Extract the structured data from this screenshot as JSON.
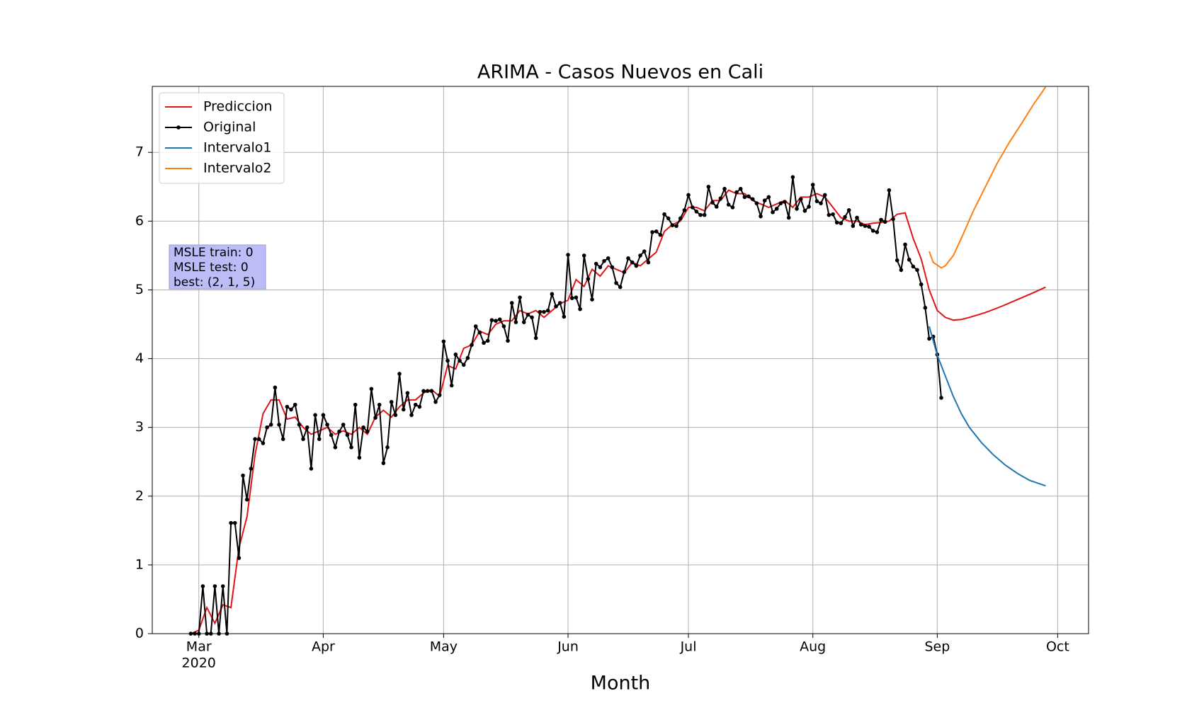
{
  "chart_data": {
    "type": "line",
    "title": "ARIMA - Casos Nuevos en Cali",
    "x_label": "Month",
    "x_year_label": "2020",
    "annotations": [
      "MSLE train: 0",
      "MSLE test: 0",
      "best: (2, 1, 5)"
    ],
    "xlim": [
      -11.6,
      221.7
    ],
    "xticks": [
      {
        "value": 0,
        "label": "Mar"
      },
      {
        "value": 31,
        "label": "Apr"
      },
      {
        "value": 61,
        "label": "May"
      },
      {
        "value": 92,
        "label": "Jun"
      },
      {
        "value": 122,
        "label": "Jul"
      },
      {
        "value": 153,
        "label": "Aug"
      },
      {
        "value": 184,
        "label": "Sep"
      },
      {
        "value": 214,
        "label": "Oct"
      }
    ],
    "ylim": [
      0,
      7.96
    ],
    "yticks": [
      0,
      1,
      2,
      3,
      4,
      5,
      6,
      7
    ],
    "grid": true,
    "legend": "upper left",
    "series": [
      {
        "name": "Prediccion",
        "color": "#e0141a",
        "marker": false,
        "x": [
          -2,
          0,
          2,
          4,
          6,
          8,
          10,
          12,
          14,
          16,
          18,
          20,
          22,
          24,
          26,
          28,
          30,
          32,
          34,
          36,
          38,
          40,
          42,
          44,
          46,
          48,
          50,
          52,
          54,
          56,
          58,
          60,
          62,
          64,
          66,
          68,
          70,
          72,
          74,
          76,
          78,
          80,
          82,
          84,
          86,
          88,
          90,
          92,
          94,
          96,
          98,
          100,
          102,
          104,
          106,
          108,
          110,
          112,
          114,
          116,
          118,
          120,
          122,
          124,
          126,
          128,
          130,
          132,
          134,
          136,
          138,
          140,
          142,
          144,
          146,
          148,
          150,
          152,
          154,
          156,
          158,
          160,
          162,
          164,
          166,
          168,
          170,
          172,
          174,
          176,
          178,
          180,
          182,
          184,
          186,
          188,
          190,
          192,
          196,
          200,
          204,
          208,
          211
        ],
        "values": [
          0,
          0.05,
          0.38,
          0.15,
          0.42,
          0.38,
          1.25,
          1.7,
          2.6,
          3.2,
          3.4,
          3.4,
          3.12,
          3.15,
          3.0,
          2.9,
          2.95,
          3.0,
          2.9,
          2.95,
          2.9,
          3.0,
          2.9,
          3.15,
          3.25,
          3.15,
          3.3,
          3.4,
          3.4,
          3.5,
          3.55,
          3.45,
          3.9,
          3.85,
          4.15,
          4.2,
          4.4,
          4.35,
          4.5,
          4.55,
          4.55,
          4.7,
          4.65,
          4.7,
          4.6,
          4.7,
          4.8,
          4.85,
          5.15,
          5.05,
          5.3,
          5.2,
          5.35,
          5.3,
          5.25,
          5.4,
          5.35,
          5.45,
          5.55,
          5.85,
          5.95,
          6.0,
          6.2,
          6.2,
          6.15,
          6.3,
          6.3,
          6.45,
          6.4,
          6.4,
          6.3,
          6.25,
          6.2,
          6.25,
          6.3,
          6.2,
          6.35,
          6.35,
          6.4,
          6.35,
          6.2,
          6.05,
          6.0,
          6.0,
          5.95,
          5.97,
          5.98,
          6.0,
          6.1,
          6.12,
          5.75,
          5.45,
          5.0,
          4.7,
          4.6,
          4.56,
          4.57,
          4.6,
          4.67,
          4.76,
          4.86,
          4.96,
          5.04
        ]
      },
      {
        "name": "Original",
        "color": "#000000",
        "marker": true,
        "x": [
          -2,
          -1,
          0,
          1,
          2,
          3,
          4,
          5,
          6,
          7,
          8,
          9,
          10,
          11,
          12,
          13,
          14,
          15,
          16,
          17,
          18,
          19,
          20,
          21,
          22,
          23,
          24,
          25,
          26,
          27,
          28,
          29,
          30,
          31,
          32,
          33,
          34,
          35,
          36,
          37,
          38,
          39,
          40,
          41,
          42,
          43,
          44,
          45,
          46,
          47,
          48,
          49,
          50,
          51,
          52,
          53,
          54,
          55,
          56,
          57,
          58,
          59,
          60,
          61,
          62,
          63,
          64,
          65,
          66,
          67,
          68,
          69,
          70,
          71,
          72,
          73,
          74,
          75,
          76,
          77,
          78,
          79,
          80,
          81,
          82,
          83,
          84,
          85,
          86,
          87,
          88,
          89,
          90,
          91,
          92,
          93,
          94,
          95,
          96,
          97,
          98,
          99,
          100,
          101,
          102,
          103,
          104,
          105,
          106,
          107,
          108,
          109,
          110,
          111,
          112,
          113,
          114,
          115,
          116,
          117,
          118,
          119,
          120,
          121,
          122,
          123,
          124,
          125,
          126,
          127,
          128,
          129,
          130,
          131,
          132,
          133,
          134,
          135,
          136,
          137,
          138,
          139,
          140,
          141,
          142,
          143,
          144,
          145,
          146,
          147,
          148,
          149,
          150,
          151,
          152,
          153,
          154,
          155,
          156,
          157,
          158,
          159,
          160,
          161,
          162,
          163,
          164,
          165,
          166,
          167,
          168,
          169,
          170,
          171,
          172,
          173,
          174,
          175,
          176,
          177,
          178,
          179,
          180,
          181,
          182,
          183,
          184,
          185
        ],
        "values": [
          0,
          0,
          0,
          0.69,
          0,
          0,
          0.69,
          0,
          0.69,
          0,
          1.61,
          1.61,
          1.1,
          2.3,
          1.95,
          2.4,
          2.83,
          2.83,
          2.77,
          3.0,
          3.04,
          3.58,
          3.04,
          2.83,
          3.3,
          3.26,
          3.33,
          3.04,
          2.83,
          3.0,
          2.4,
          3.18,
          2.83,
          3.18,
          3.04,
          2.89,
          2.71,
          2.94,
          3.04,
          2.89,
          2.71,
          3.33,
          2.56,
          3.0,
          2.94,
          3.56,
          3.14,
          3.33,
          2.48,
          2.71,
          3.37,
          3.18,
          3.78,
          3.26,
          3.5,
          3.18,
          3.33,
          3.3,
          3.53,
          3.53,
          3.53,
          3.37,
          3.47,
          4.25,
          3.97,
          3.61,
          4.06,
          3.97,
          3.91,
          4.01,
          4.2,
          4.47,
          4.38,
          4.23,
          4.26,
          4.56,
          4.55,
          4.57,
          4.47,
          4.26,
          4.81,
          4.53,
          4.89,
          4.53,
          4.64,
          4.6,
          4.3,
          4.68,
          4.68,
          4.7,
          4.94,
          4.76,
          4.81,
          4.61,
          5.51,
          4.88,
          4.89,
          4.72,
          5.5,
          5.16,
          4.86,
          5.38,
          5.33,
          5.42,
          5.46,
          5.33,
          5.1,
          5.04,
          5.26,
          5.46,
          5.4,
          5.35,
          5.5,
          5.56,
          5.4,
          5.84,
          5.85,
          5.8,
          6.1,
          6.04,
          5.94,
          5.93,
          6.04,
          6.16,
          6.38,
          6.2,
          6.14,
          6.09,
          6.09,
          6.5,
          6.27,
          6.21,
          6.33,
          6.47,
          6.24,
          6.2,
          6.42,
          6.47,
          6.35,
          6.36,
          6.32,
          6.26,
          6.07,
          6.3,
          6.35,
          6.13,
          6.18,
          6.26,
          6.28,
          6.05,
          6.64,
          6.18,
          6.32,
          6.15,
          6.21,
          6.53,
          6.29,
          6.26,
          6.38,
          6.09,
          6.1,
          5.98,
          5.97,
          6.06,
          6.16,
          5.93,
          6.05,
          5.95,
          5.93,
          5.92,
          5.86,
          5.84,
          6.02,
          5.99,
          6.45,
          6.03,
          5.43,
          5.29,
          5.66,
          5.44,
          5.34,
          5.29,
          5.08,
          4.74,
          4.29,
          4.32,
          4.06,
          3.43
        ]
      },
      {
        "name": "Intervalo1",
        "color": "#1f77b4",
        "marker": false,
        "x": [
          182,
          184,
          186,
          188,
          190,
          192,
          195,
          198,
          201,
          204,
          207,
          211
        ],
        "values": [
          4.47,
          4.05,
          3.75,
          3.45,
          3.2,
          3.0,
          2.78,
          2.6,
          2.45,
          2.33,
          2.23,
          2.15
        ]
      },
      {
        "name": "Intervalo2",
        "color": "#ff7f0e",
        "marker": false,
        "x": [
          182,
          183,
          185,
          186,
          188,
          190,
          193,
          196,
          199,
          202,
          205,
          208,
          211
        ],
        "values": [
          5.56,
          5.4,
          5.32,
          5.35,
          5.5,
          5.75,
          6.15,
          6.5,
          6.85,
          7.15,
          7.42,
          7.7,
          7.95
        ]
      }
    ]
  }
}
